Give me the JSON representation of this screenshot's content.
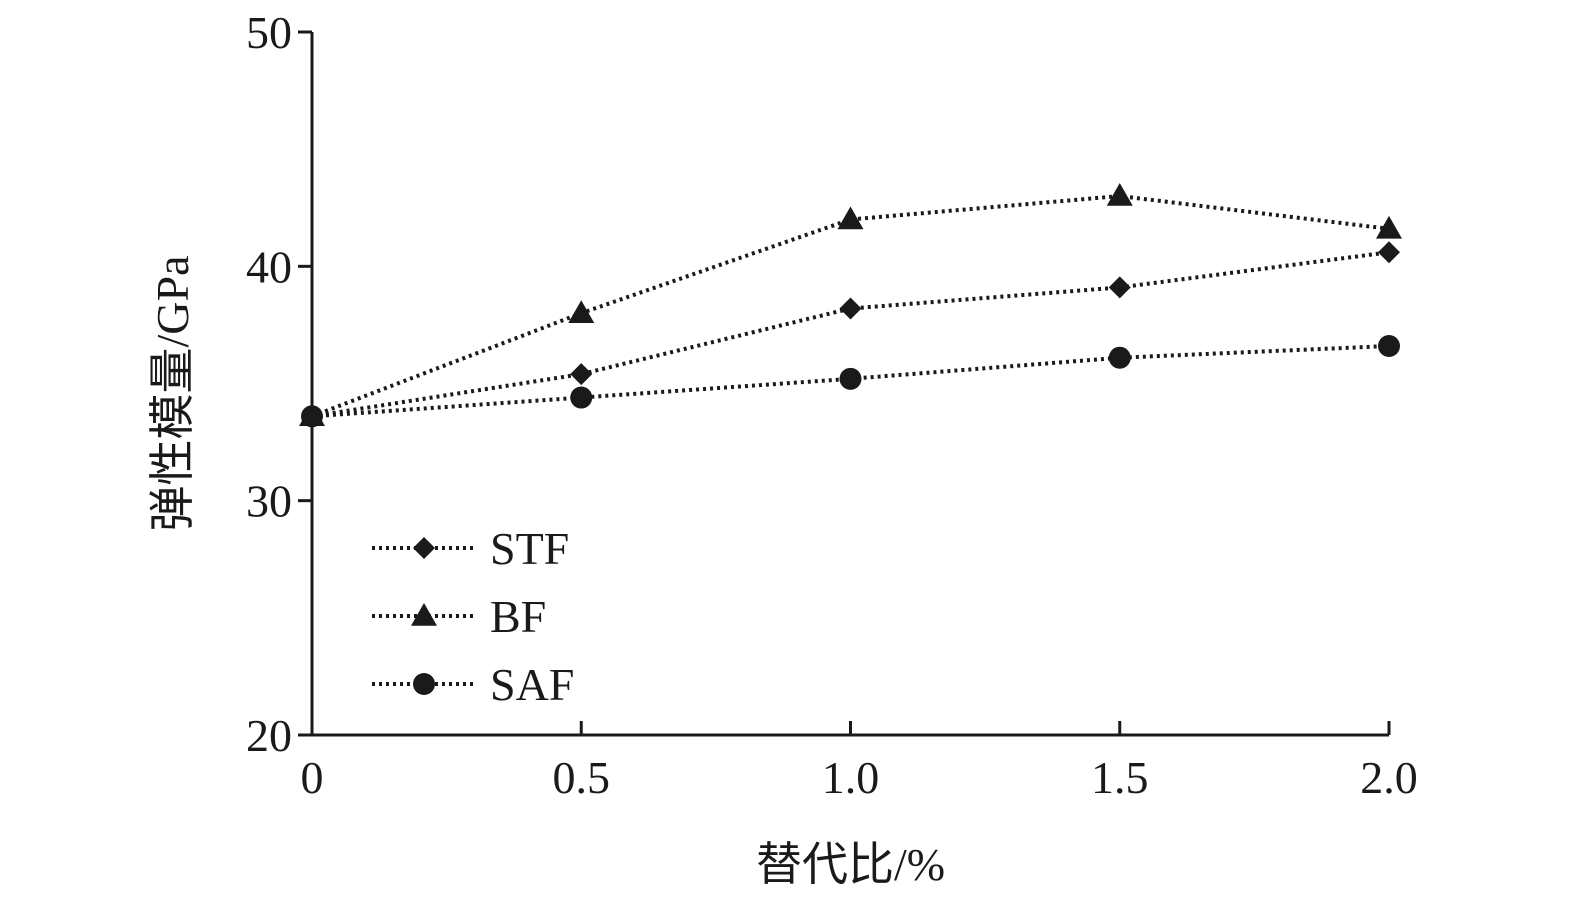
{
  "chart_data": {
    "type": "line",
    "title": "",
    "xlabel": "替代比/%",
    "ylabel": "弹性模量/GPa",
    "x": [
      0,
      0.5,
      1.0,
      1.5,
      2.0
    ],
    "x_tick_labels": [
      "0",
      "0.5",
      "1.0",
      "1.5",
      "2.0"
    ],
    "y_ticks": [
      20,
      30,
      40,
      50
    ],
    "y_tick_labels": [
      "20",
      "30",
      "40",
      "50"
    ],
    "xlim": [
      0,
      2.0
    ],
    "ylim": [
      20,
      50
    ],
    "grid": false,
    "legend_position": "bottom-left",
    "line_style": "dotted",
    "color": "#1a1a1a",
    "series": [
      {
        "name": "STF",
        "marker": "diamond",
        "values": [
          33.6,
          35.4,
          38.2,
          39.1,
          40.6
        ]
      },
      {
        "name": "BF",
        "marker": "triangle",
        "values": [
          33.6,
          38.0,
          42.0,
          43.0,
          41.6
        ]
      },
      {
        "name": "SAF",
        "marker": "circle",
        "values": [
          33.6,
          34.4,
          35.2,
          36.1,
          36.6
        ]
      }
    ]
  }
}
